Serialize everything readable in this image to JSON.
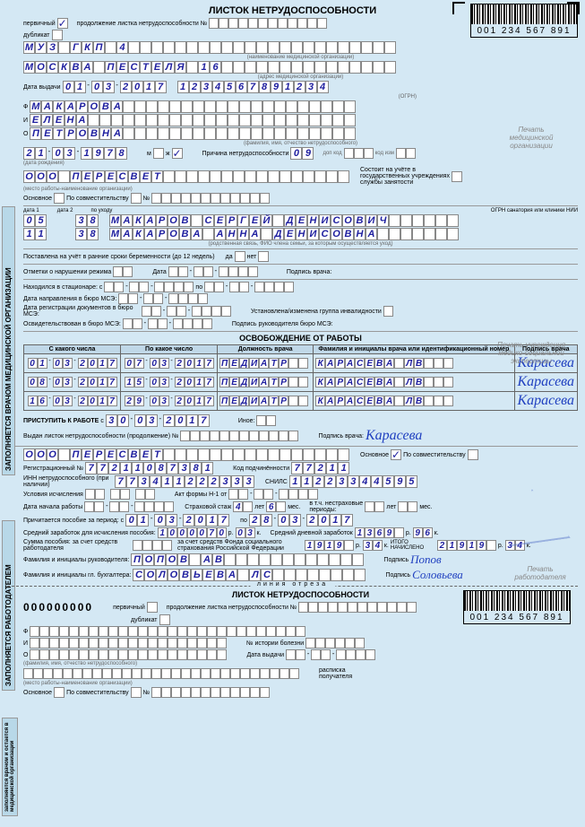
{
  "title": "ЛИСТОК НЕТРУДОСПОСОБНОСТИ",
  "barcode_number": "001 234 567 891",
  "header": {
    "primary_label": "первичный",
    "primary_checked": true,
    "duplicate_label": "дубликат",
    "continuation_label": "продолжение листка нетрудоспособности №"
  },
  "org_name": "МУЗ ГКП 4",
  "org_name_sublabel": "(наименование медицинской организации)",
  "address": "МОСКВА ПЕСТЕЛЯ 16",
  "address_sublabel": "(адрес медицинской организации)",
  "issue_date_label": "Дата выдачи",
  "issue_date": "01-03-2017",
  "ogrn": "1234567891234",
  "ogrn_label": "(ОГРН)",
  "surname_prefix": "Ф",
  "surname": "МАКАРОВА",
  "name_prefix": "И",
  "name": "ЕЛЕНА",
  "patronymic_prefix": "О",
  "patronymic": "ПЕТРОВНА",
  "fio_sublabel": "(фамилия, имя, отчество нетрудоспособного)",
  "stamp1": "Печать медицинской организации",
  "dob": "21-03-1978",
  "dob_sublabel": "(дата рождения)",
  "sex_m": "м",
  "sex_f": "ж",
  "sex_f_checked": true,
  "reason_label": "Причина нетрудоспособности",
  "reason_code": "09",
  "reason_extra_label": "доп код",
  "reason_change_label": "код изм",
  "employer": "ООО ПЕРЕСВЕТ",
  "employer_sublabel": "(место работы-наименование организации)",
  "main_label": "Основное",
  "part_label": "По совместительству",
  "employment_note": "Состоит на учёте в государственных учреждениях службы занятости",
  "care": {
    "code1": "05",
    "code2": "11",
    "age1": "38",
    "age2": "38",
    "person1": "МАКАРОВ СЕРГЕЙ ДЕНИСОВИЧ",
    "person2": "МАКАРОВА АННА ДЕНИСОВНА",
    "date_labels": [
      "дата 1",
      "дата 2"
    ],
    "care_sublabel": "(родственная связь, ФИО члена семьи, за которым осуществляется уход)",
    "ext_label": "ОГРН санатория или клиники НИИ"
  },
  "pregnancy_label": "Поставлена на учёт в ранние сроки беременности (до 12 недель)",
  "yes": "да",
  "no": "нет",
  "violation_label": "Отметки о нарушении режима",
  "date_label": "Дата",
  "sig_label": "Подпись врача:",
  "hospital_label": "Находился в стационаре:",
  "from": "с",
  "to": "по",
  "mse1": "Дата направления в бюро МСЭ:",
  "mse2": "Дата регистрации документов в бюро МСЭ:",
  "mse3": "Освидетельствован в бюро МСЭ:",
  "disability_label": "Установлена/изменена группа инвалидности",
  "mse_head_label": "Подпись руководителя бюро МСЭ:",
  "stamp2": "Печать учреждения медико-социальной экспертизы",
  "release_title": "ОСВОБОЖДЕНИЕ ОТ РАБОТЫ",
  "table_headers": [
    "С какого числа",
    "По какое число",
    "Должность врача",
    "Фамилия и инициалы врача или идентификационный номер",
    "Подпись врача"
  ],
  "release_rows": [
    {
      "from": "01-03-2017",
      "to": "07-03-2017",
      "position": "ПЕДИАТР",
      "doctor": "КАРАСЕВА ЛВ",
      "sig": "Карасева"
    },
    {
      "from": "08-03-2017",
      "to": "15-03-2017",
      "position": "ПЕДИАТР",
      "doctor": "КАРАСЕВА ЛВ",
      "sig": "Карасева"
    },
    {
      "from": "16-03-2017",
      "to": "29-03-2017",
      "position": "ПЕДИАТР",
      "doctor": "КАРАСЕВА ЛВ",
      "sig": "Карасева"
    }
  ],
  "return_label": "ПРИСТУПИТЬ К РАБОТЕ",
  "return_date": "30-03-2017",
  "other_label": "Иное:",
  "issued_cont_label": "Выдан листок нетрудоспособности (продолжение) №",
  "doctor_sig_label": "Подпись врача:",
  "doctor_sig": "Карасева",
  "employer_section": {
    "employer": "ООО ПЕРЕСВЕТ",
    "main_checked": true,
    "reg_label": "Регистрационный №",
    "reg": "7721108738 1",
    "sub_code_label": "Код подчинённости",
    "sub_code": "77211",
    "inn_label": "ИНН нетрудоспособного (при наличии)",
    "inn": "773411222333",
    "snils_label": "СНИЛС",
    "snils": "112-233-445-95",
    "conditions_label": "Условия исчисления",
    "act_label": "Акт формы Н-1 от",
    "start_date_label": "Дата начала работы",
    "stazh_label": "Страховой стаж",
    "stazh_years": "4",
    "years_label": "лет",
    "stazh_months": "6",
    "months_label": "мес.",
    "nonstazh_label": "в т.ч. нестраховые периоды:",
    "benefit_period_label": "Причитается пособие за период:",
    "benefit_from": "01-03-2017",
    "benefit_to": "28-03-2017",
    "avg_earn_label": "Средний заработок для исчисления пособия:",
    "avg_earn": "1000070",
    "avg_earn_r": "03",
    "avg_daily_label": "Средний дневной заработок",
    "avg_daily": "1369",
    "avg_daily_k": "96",
    "sum_employer_label": "Сумма пособия: за счет средств работодателя",
    "sum_fss_label": "за счет средств Фонда социального страхования Российской Федерации",
    "sum_fss": "1919",
    "sum_fss_k": "34",
    "total_label": "ИТОГО НАЧИСЛЕНО",
    "total": "21919",
    "total_k": "34",
    "r": "р.",
    "k": "к.",
    "head_label": "Фамилия и инициалы руководителя:",
    "head": "ПОПОВ АВ",
    "head_sig": "Попов",
    "acc_label": "Фамилия и инициалы гл. бухгалтера:",
    "acc": "СОЛОВЬЕВА ЛС",
    "acc_sig": "Соловьева",
    "sig_label": "Подпись",
    "stamp3": "Печать работодателя"
  },
  "cutline_label": "линия отреза",
  "stub": {
    "number": "000000000",
    "history_label": "№ истории болезни",
    "issue_date_label": "Дата выдачи",
    "receipt_label": "расписка получателя"
  },
  "section_labels": {
    "sl1": "ЗАПОЛНЯЕТСЯ ВРАЧОМ МЕДИЦИНСКОЙ ОРГАНИЗАЦИИ",
    "sl2": "ЗАПОЛНЯЕТСЯ РАБОТОДАТЕЛЕМ",
    "sl3": "заполняется врачом и остается в медицинской организации"
  },
  "colors": {
    "bg": "#d4e8f4",
    "ink": "#2020a0",
    "cell_border": "#888888"
  }
}
